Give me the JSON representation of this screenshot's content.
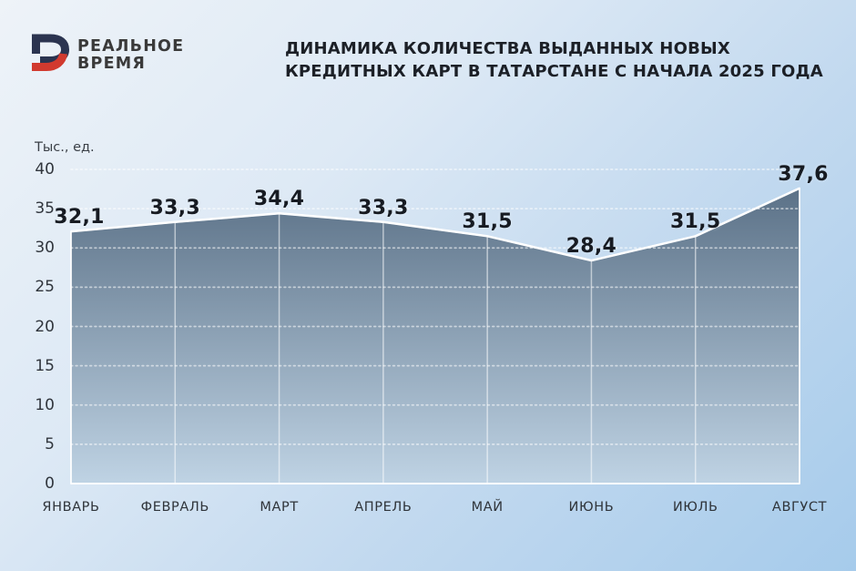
{
  "brand": {
    "name_line1": "РЕАЛЬНОЕ",
    "name_line2": "ВРЕМЯ",
    "icon_navy": "#2b3450",
    "icon_red": "#d13a2f"
  },
  "title": {
    "line1": "ДИНАМИКА КОЛИЧЕСТВА ВЫДАННЫХ НОВЫХ",
    "line2": "КРЕДИТНЫХ КАРТ В ТАТАРСТАНЕ С НАЧАЛА 2025 ГОДА"
  },
  "chart_data": {
    "type": "area",
    "title": "ДИНАМИКА КОЛИЧЕСТВА ВЫДАННЫХ НОВЫХ КРЕДИТНЫХ КАРТ В ТАТАРСТАНЕ С НАЧАЛА 2025 ГОДА",
    "unit_label": "Тыс., ед.",
    "categories": [
      "ЯНВАРЬ",
      "ФЕВРАЛЬ",
      "МАРТ",
      "АПРЕЛЬ",
      "МАЙ",
      "ИЮНЬ",
      "ИЮЛЬ",
      "АВГУСТ"
    ],
    "values": [
      32.1,
      33.3,
      34.4,
      33.3,
      31.5,
      28.4,
      31.5,
      37.6
    ],
    "value_labels": [
      "32,1",
      "33,3",
      "34,4",
      "33,3",
      "31,5",
      "28,4",
      "31,5",
      "37,6"
    ],
    "xlabel": "",
    "ylabel": "Тыс., ед.",
    "ylim": [
      0,
      40
    ],
    "yticks": [
      0,
      5,
      10,
      15,
      20,
      25,
      30,
      35,
      40
    ],
    "grid": "horizontal-dotted-white",
    "legend": "none",
    "colors": {
      "area_fill_top": "#5b7187",
      "area_fill_bottom": "#bfd3e4",
      "line": "#ffffff",
      "grid": "#ffffff",
      "label_text": "#171b22"
    }
  }
}
